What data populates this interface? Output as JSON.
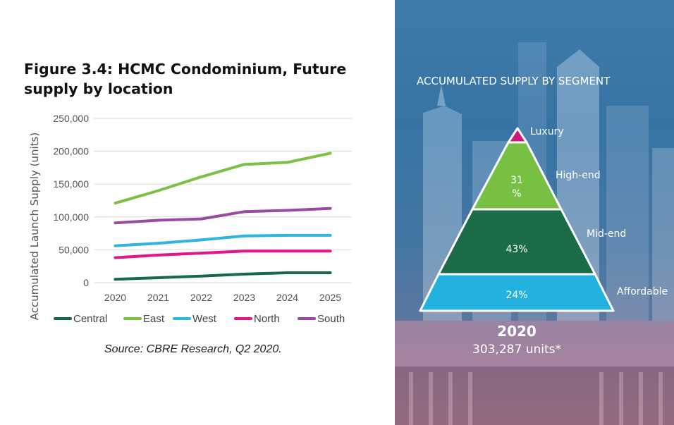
{
  "left": {
    "title": "Figure 3.4: HCMC Condominium, Future supply by location",
    "source": "Source: CBRE Research, Q2 2020."
  },
  "right": {
    "heading": "ACCUMULATED SUPPLY BY SEGMENT",
    "year": "2020",
    "units": "303,287 units*"
  },
  "chart_data": [
    {
      "type": "line",
      "title": "Figure 3.4: HCMC Condominium, Future supply by location",
      "xlabel": "",
      "ylabel": "Accumulated  Launch Supply (units)",
      "x": [
        "2020",
        "2021",
        "2022",
        "2023",
        "2024",
        "2025"
      ],
      "ylim": [
        0,
        250000
      ],
      "yticks": [
        "250,000",
        "200,000",
        "150,000",
        "100,000",
        "50,000",
        "0"
      ],
      "ytick_values": [
        250000,
        200000,
        150000,
        100000,
        50000,
        0
      ],
      "grid": true,
      "legend": "bottom",
      "series": [
        {
          "name": "Central",
          "color": "#17694a",
          "values": [
            5000,
            7500,
            10000,
            13000,
            15000,
            15000
          ]
        },
        {
          "name": "East",
          "color": "#7cc144",
          "values": [
            121000,
            140000,
            161000,
            180000,
            183000,
            197000
          ]
        },
        {
          "name": "West",
          "color": "#2fb6de",
          "values": [
            56000,
            60000,
            65000,
            71000,
            72000,
            72000
          ]
        },
        {
          "name": "North",
          "color": "#e3148c",
          "values": [
            38000,
            42000,
            45000,
            48000,
            48000,
            48000
          ]
        },
        {
          "name": "South",
          "color": "#9a4aa3",
          "values": [
            91000,
            95000,
            97000,
            108000,
            110000,
            113000
          ]
        }
      ]
    },
    {
      "type": "pyramid",
      "title": "ACCUMULATED SUPPLY BY SEGMENT",
      "segments": [
        {
          "name": "Luxury",
          "value": "",
          "color": "#c81a78"
        },
        {
          "name": "High-end",
          "value": "31\n%",
          "color": "#77c043"
        },
        {
          "name": "Mid-end",
          "value": "43%",
          "color": "#1a6b47"
        },
        {
          "name": "Affordable",
          "value": "24%",
          "color": "#23b1e0"
        }
      ]
    }
  ]
}
